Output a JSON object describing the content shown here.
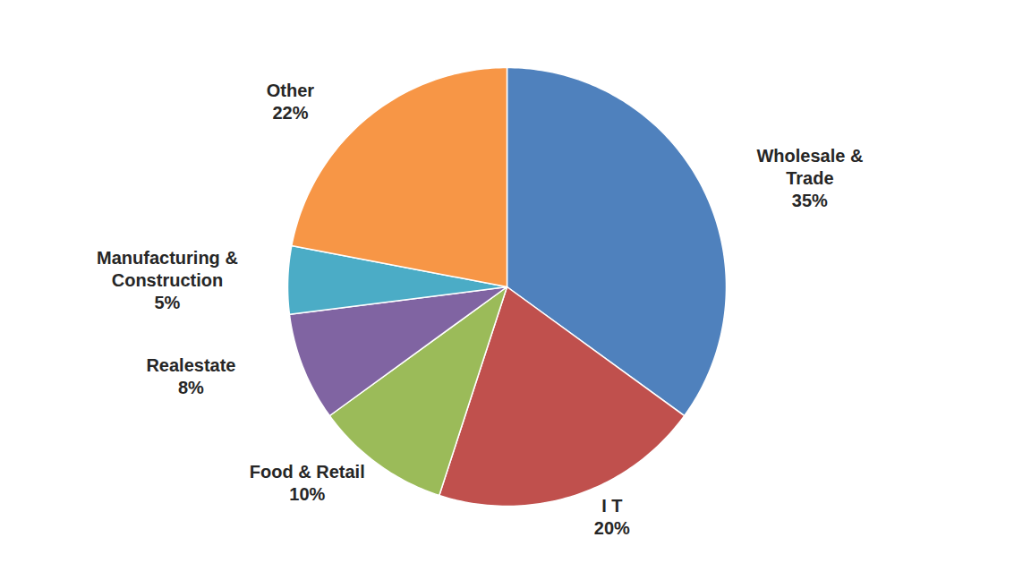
{
  "chart_data": {
    "type": "pie",
    "categories": [
      "Wholesale & Trade",
      "I T",
      "Food & Retail",
      "Realestate",
      "Manufacturing & Construction",
      "Other"
    ],
    "values": [
      35,
      20,
      10,
      8,
      5,
      22
    ],
    "value_labels": [
      "35%",
      "20%",
      "10%",
      "8%",
      "5%",
      "22%"
    ],
    "colors": [
      "#4f81bd",
      "#c0504d",
      "#9bbb59",
      "#8064a2",
      "#4bacc6",
      "#f79646"
    ],
    "data_labels": true
  }
}
